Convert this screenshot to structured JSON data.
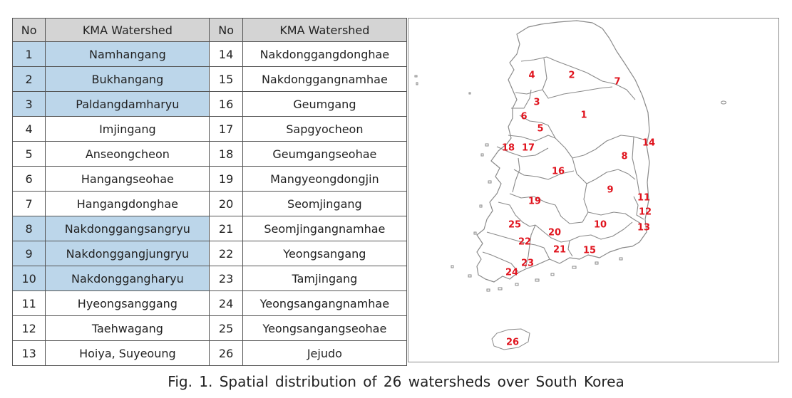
{
  "table": {
    "headers": [
      "No",
      "KMA Watershed",
      "No",
      "KMA Watershed"
    ],
    "rows": [
      {
        "no1": "1",
        "name1": "Namhangang",
        "hl": true,
        "no2": "14",
        "name2": "Nakdonggangdonghae"
      },
      {
        "no1": "2",
        "name1": "Bukhangang",
        "hl": true,
        "no2": "15",
        "name2": "Nakdonggangnamhae"
      },
      {
        "no1": "3",
        "name1": "Paldangdamharyu",
        "hl": true,
        "no2": "16",
        "name2": "Geumgang"
      },
      {
        "no1": "4",
        "name1": "Imjingang",
        "hl": false,
        "no2": "17",
        "name2": "Sapgyocheon"
      },
      {
        "no1": "5",
        "name1": "Anseongcheon",
        "hl": false,
        "no2": "18",
        "name2": "Geumgangseohae"
      },
      {
        "no1": "6",
        "name1": "Hangangseohae",
        "hl": false,
        "no2": "19",
        "name2": "Mangyeongdongjin"
      },
      {
        "no1": "7",
        "name1": "Hangangdonghae",
        "hl": false,
        "no2": "20",
        "name2": "Seomjingang"
      },
      {
        "no1": "8",
        "name1": "Nakdonggangsangryu",
        "hl": true,
        "no2": "21",
        "name2": "Seomjingangnamhae"
      },
      {
        "no1": "9",
        "name1": "Nakdonggangjungryu",
        "hl": true,
        "no2": "22",
        "name2": "Yeongsangang"
      },
      {
        "no1": "10",
        "name1": "Nakdonggangharyu",
        "hl": true,
        "no2": "23",
        "name2": "Tamjingang"
      },
      {
        "no1": "11",
        "name1": "Hyeongsanggang",
        "hl": false,
        "no2": "24",
        "name2": "Yeongsangangnamhae"
      },
      {
        "no1": "12",
        "name1": "Taehwagang",
        "hl": false,
        "no2": "25",
        "name2": "Yeongsangangseohae"
      },
      {
        "no1": "13",
        "name1": "Hoiya, Suyeoung",
        "hl": false,
        "no2": "26",
        "name2": "Jejudo"
      }
    ]
  },
  "map": {
    "labels": [
      "1",
      "2",
      "3",
      "4",
      "5",
      "6",
      "7",
      "8",
      "9",
      "10",
      "11",
      "12",
      "13",
      "14",
      "15",
      "16",
      "17",
      "18",
      "19",
      "20",
      "21",
      "22",
      "23",
      "24",
      "25",
      "26"
    ]
  },
  "caption": "Fig. 1. Spatial distribution of 26 watersheds over South Korea",
  "colors": {
    "highlight": "#bcd6ea",
    "header": "#d4d4d4",
    "label_red": "#e0141e",
    "boundary_gray": "#8a8a8a"
  }
}
